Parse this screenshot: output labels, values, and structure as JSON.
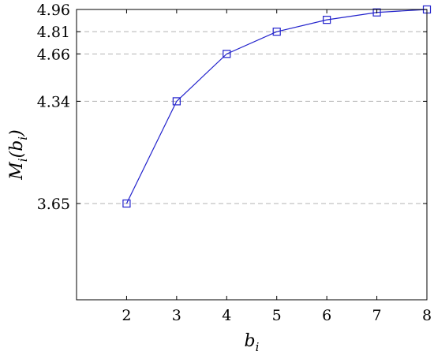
{
  "chart_data": {
    "type": "line",
    "title": "",
    "xlabel": {
      "main": "b",
      "sub": "i"
    },
    "ylabel": {
      "main": "M",
      "sub1": "i",
      "open": "(",
      "arg": "b",
      "sub2": "i",
      "close": ")"
    },
    "x": [
      2,
      3,
      4,
      5,
      6,
      7,
      8
    ],
    "series": [
      {
        "values": [
          3.65,
          4.34,
          4.66,
          4.81,
          4.89,
          4.94,
          4.96
        ],
        "color": "#2222cc",
        "marker": "square"
      }
    ],
    "xlim": [
      1,
      8
    ],
    "ylim": [
      3.0,
      4.96
    ],
    "xticks": [
      "2",
      "3",
      "4",
      "5",
      "6",
      "7",
      "8"
    ],
    "yticks": [
      "3.65",
      "4.34",
      "4.66",
      "4.81",
      "4.96"
    ],
    "grid": "y-dashed",
    "legend": "none"
  }
}
